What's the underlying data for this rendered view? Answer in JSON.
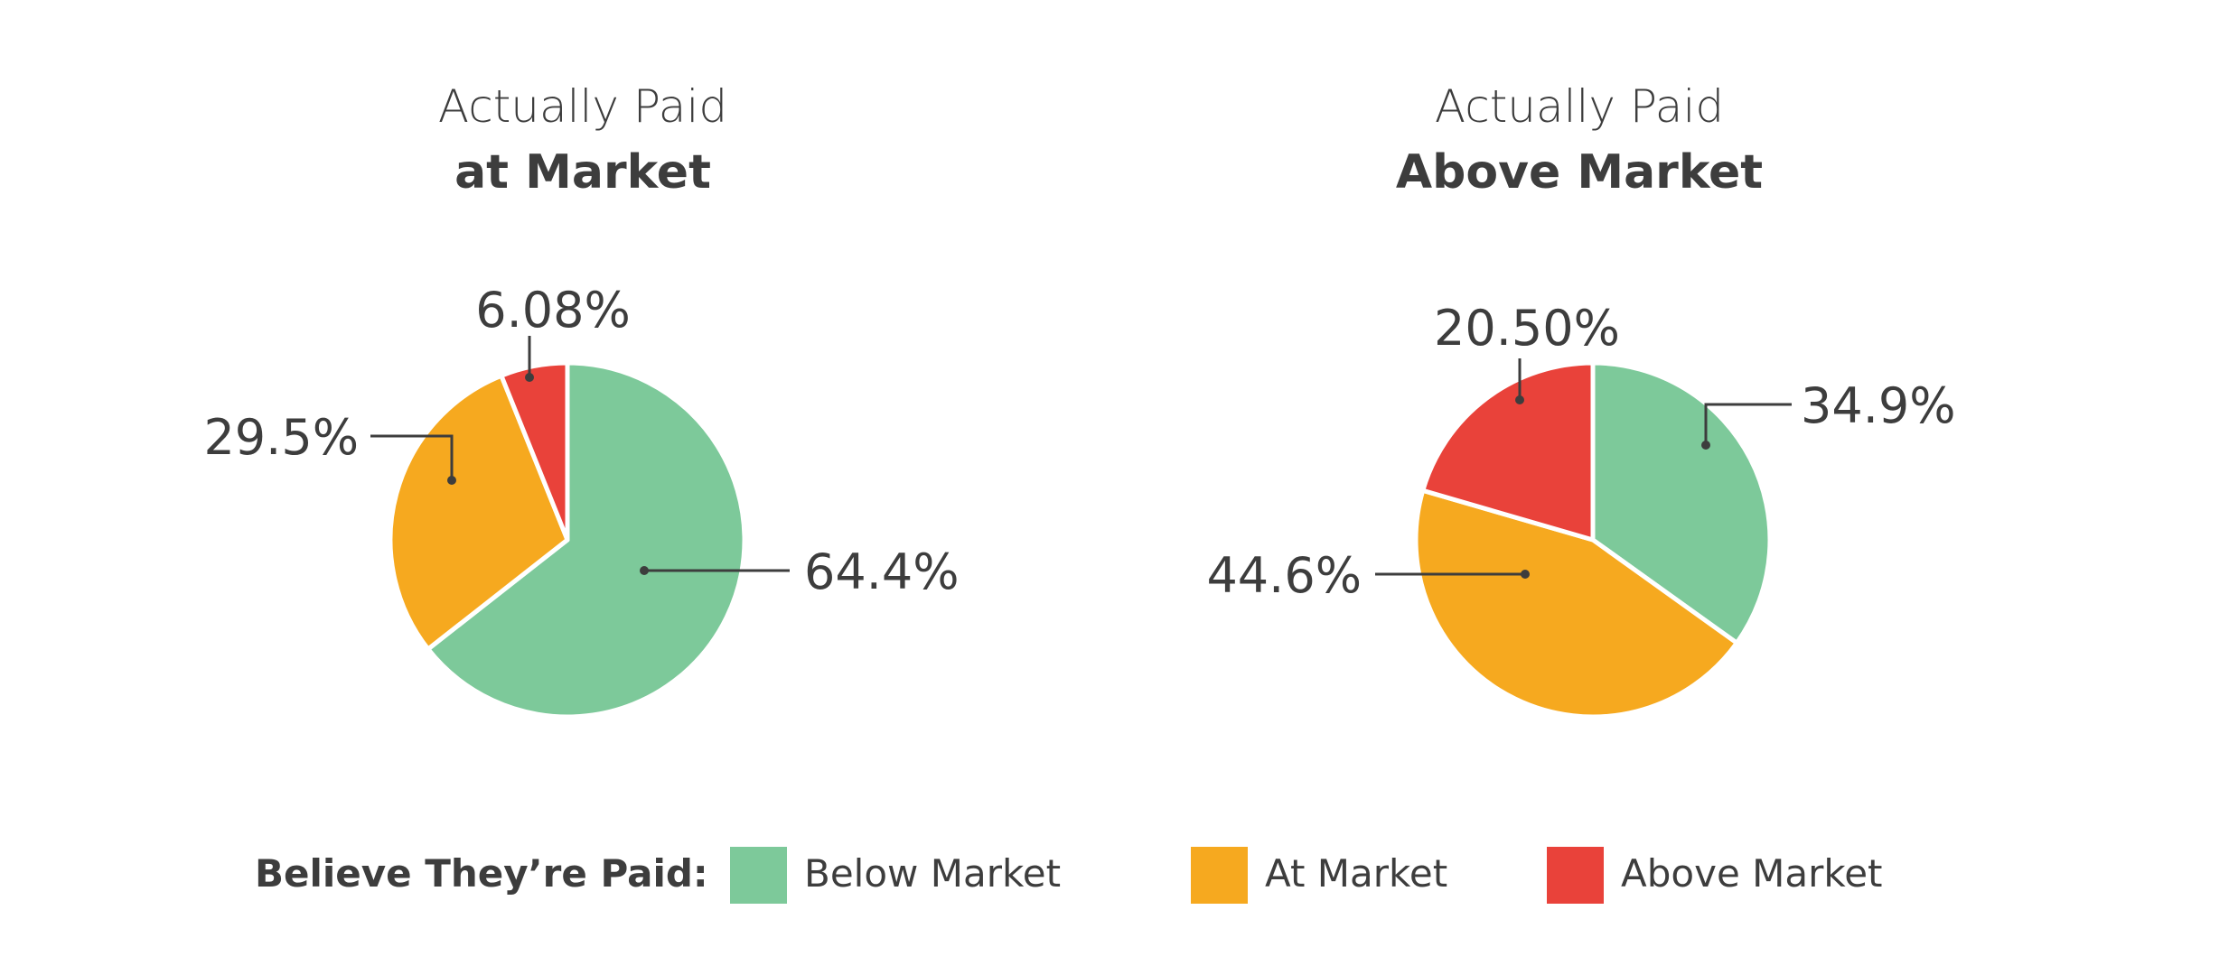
{
  "chart_data": [
    {
      "type": "pie",
      "title_line1": "Actually Paid",
      "title_line2": "at Market",
      "slices": [
        {
          "category": "Below Market",
          "value": 64.4,
          "label": "64.4%",
          "color": "#7dc99a"
        },
        {
          "category": "At Market",
          "value": 29.5,
          "label": "29.5%",
          "color": "#f6a91f"
        },
        {
          "category": "Above Market",
          "value": 6.08,
          "label": "6.08%",
          "color": "#e9423a"
        }
      ]
    },
    {
      "type": "pie",
      "title_line1": "Actually Paid",
      "title_line2": "Above Market",
      "slices": [
        {
          "category": "Below Market",
          "value": 34.9,
          "label": "34.9%",
          "color": "#7dc99a"
        },
        {
          "category": "At Market",
          "value": 44.6,
          "label": "44.6%",
          "color": "#f6a91f"
        },
        {
          "category": "Above Market",
          "value": 20.5,
          "label": "20.50%",
          "color": "#e9423a"
        }
      ]
    }
  ],
  "legend": {
    "title": "Believe They’re Paid:",
    "items": [
      {
        "label": "Below Market",
        "color": "#7dc99a"
      },
      {
        "label": "At Market",
        "color": "#f6a91f"
      },
      {
        "label": "Above Market",
        "color": "#e9423a"
      }
    ]
  }
}
